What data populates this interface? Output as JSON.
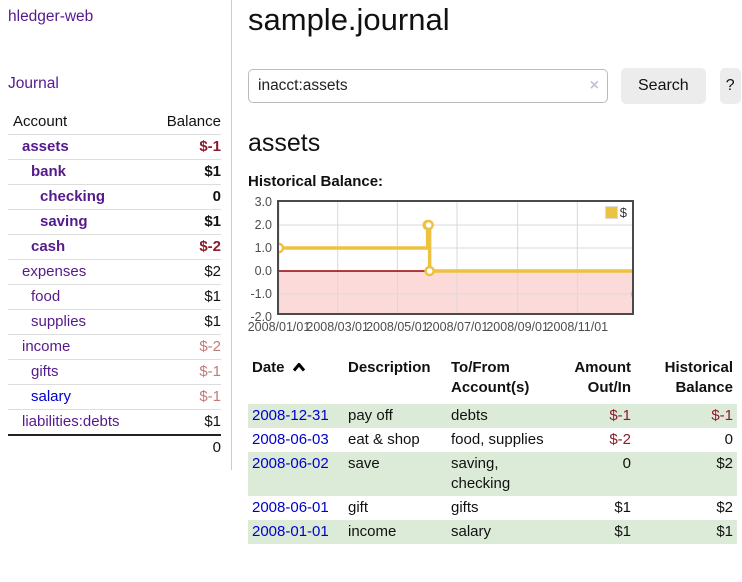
{
  "app": {
    "brand": "hledger-web"
  },
  "sidebar": {
    "nav_journal": "Journal",
    "accounts": {
      "col_account": "Account",
      "col_balance": "Balance",
      "rows": [
        {
          "name": "assets",
          "balance": "$-1",
          "depth": 1,
          "current": true,
          "balance_color": "negative",
          "link_color": "purple"
        },
        {
          "name": "bank",
          "balance": "$1",
          "depth": 2,
          "current": true,
          "balance_color": "positive",
          "link_color": "purple"
        },
        {
          "name": "checking",
          "balance": "0",
          "depth": 3,
          "current": true,
          "balance_color": "positive",
          "link_color": "purple"
        },
        {
          "name": "saving",
          "balance": "$1",
          "depth": 3,
          "current": true,
          "balance_color": "positive",
          "link_color": "purple"
        },
        {
          "name": "cash",
          "balance": "$-2",
          "depth": 2,
          "current": true,
          "balance_color": "negative",
          "link_color": "purple"
        },
        {
          "name": "expenses",
          "balance": "$2",
          "depth": 1,
          "current": false,
          "balance_color": "positive",
          "link_color": "purple"
        },
        {
          "name": "food",
          "balance": "$1",
          "depth": 2,
          "current": false,
          "balance_color": "positive",
          "link_color": "purple"
        },
        {
          "name": "supplies",
          "balance": "$1",
          "depth": 2,
          "current": false,
          "balance_color": "positive",
          "link_color": "purple"
        },
        {
          "name": "income",
          "balance": "$-2",
          "depth": 1,
          "current": false,
          "balance_color": "negative-light",
          "link_color": "purple"
        },
        {
          "name": "gifts",
          "balance": "$-1",
          "depth": 2,
          "current": false,
          "balance_color": "negative-light",
          "link_color": "purple"
        },
        {
          "name": "salary",
          "balance": "$-1",
          "depth": 2,
          "current": false,
          "balance_color": "negative-light",
          "link_color": "blue"
        },
        {
          "name": "liabilities:debts",
          "balance": "$1",
          "depth": 1,
          "current": false,
          "balance_color": "positive",
          "link_color": "purple"
        }
      ],
      "total": "0"
    }
  },
  "main": {
    "title": "sample.journal",
    "search": {
      "value": "inacct:assets",
      "clear_icon": "×",
      "search_button": "Search",
      "help_button": "?"
    },
    "account_heading": "assets",
    "chart_title": "Historical Balance:"
  },
  "chart_data": {
    "type": "line",
    "title": "Historical Balance",
    "step": true,
    "series": [
      {
        "name": "$",
        "points": [
          [
            "2008-01-01",
            1
          ],
          [
            "2008-06-01",
            2
          ],
          [
            "2008-06-02",
            2
          ],
          [
            "2008-06-03",
            0
          ],
          [
            "2008-12-31",
            -1
          ]
        ]
      }
    ],
    "x_range": [
      "2008-01-01",
      "2008-12-31"
    ],
    "x_tick_labels": [
      "2008/01/01",
      "2008/03/01",
      "2008/05/01",
      "2008/07/01",
      "2008/09/01",
      "2008/11/01"
    ],
    "y_ticks": [
      3,
      2,
      1,
      0,
      -1,
      -2
    ],
    "ylim": [
      -2,
      3
    ],
    "grid": true,
    "legend_position": "top-right",
    "line_color": "#edc240",
    "marker_fill": "#ffffff",
    "zero_line_color": "#990000",
    "negative_region_color": "#fcdada",
    "grid_color": "#d9d9d9"
  },
  "register": {
    "headers": [
      "Date",
      "Description",
      "To/From Account(s)",
      "Amount Out/In",
      "Historical Balance"
    ],
    "sort_column": "Date",
    "sort_icon": "chevron-up-icon",
    "rows": [
      {
        "date": "2008-12-31",
        "description": "pay off",
        "accounts": "debts",
        "amount": "$-1",
        "balance": "$-1",
        "amount_color": "negative",
        "balance_color": "negative"
      },
      {
        "date": "2008-06-03",
        "description": "eat & shop",
        "accounts": "food, supplies",
        "amount": "$-2",
        "balance": "0",
        "amount_color": "negative",
        "balance_color": "positive"
      },
      {
        "date": "2008-06-02",
        "description": "save",
        "accounts": "saving, checking",
        "amount": "0",
        "balance": "$2",
        "amount_color": "positive",
        "balance_color": "positive"
      },
      {
        "date": "2008-06-01",
        "description": "gift",
        "accounts": "gifts",
        "amount": "$1",
        "balance": "$2",
        "amount_color": "positive",
        "balance_color": "positive"
      },
      {
        "date": "2008-01-01",
        "description": "income",
        "accounts": "salary",
        "amount": "$1",
        "balance": "$1",
        "amount_color": "positive",
        "balance_color": "positive"
      }
    ]
  },
  "colors": {
    "link_purple": "#551a8b",
    "link_blue": "#0000cc",
    "negative": "#8c1b2b",
    "negative_light": "#c47a7a",
    "row_green": "#dcead8",
    "accent_yellow": "#edc240"
  }
}
